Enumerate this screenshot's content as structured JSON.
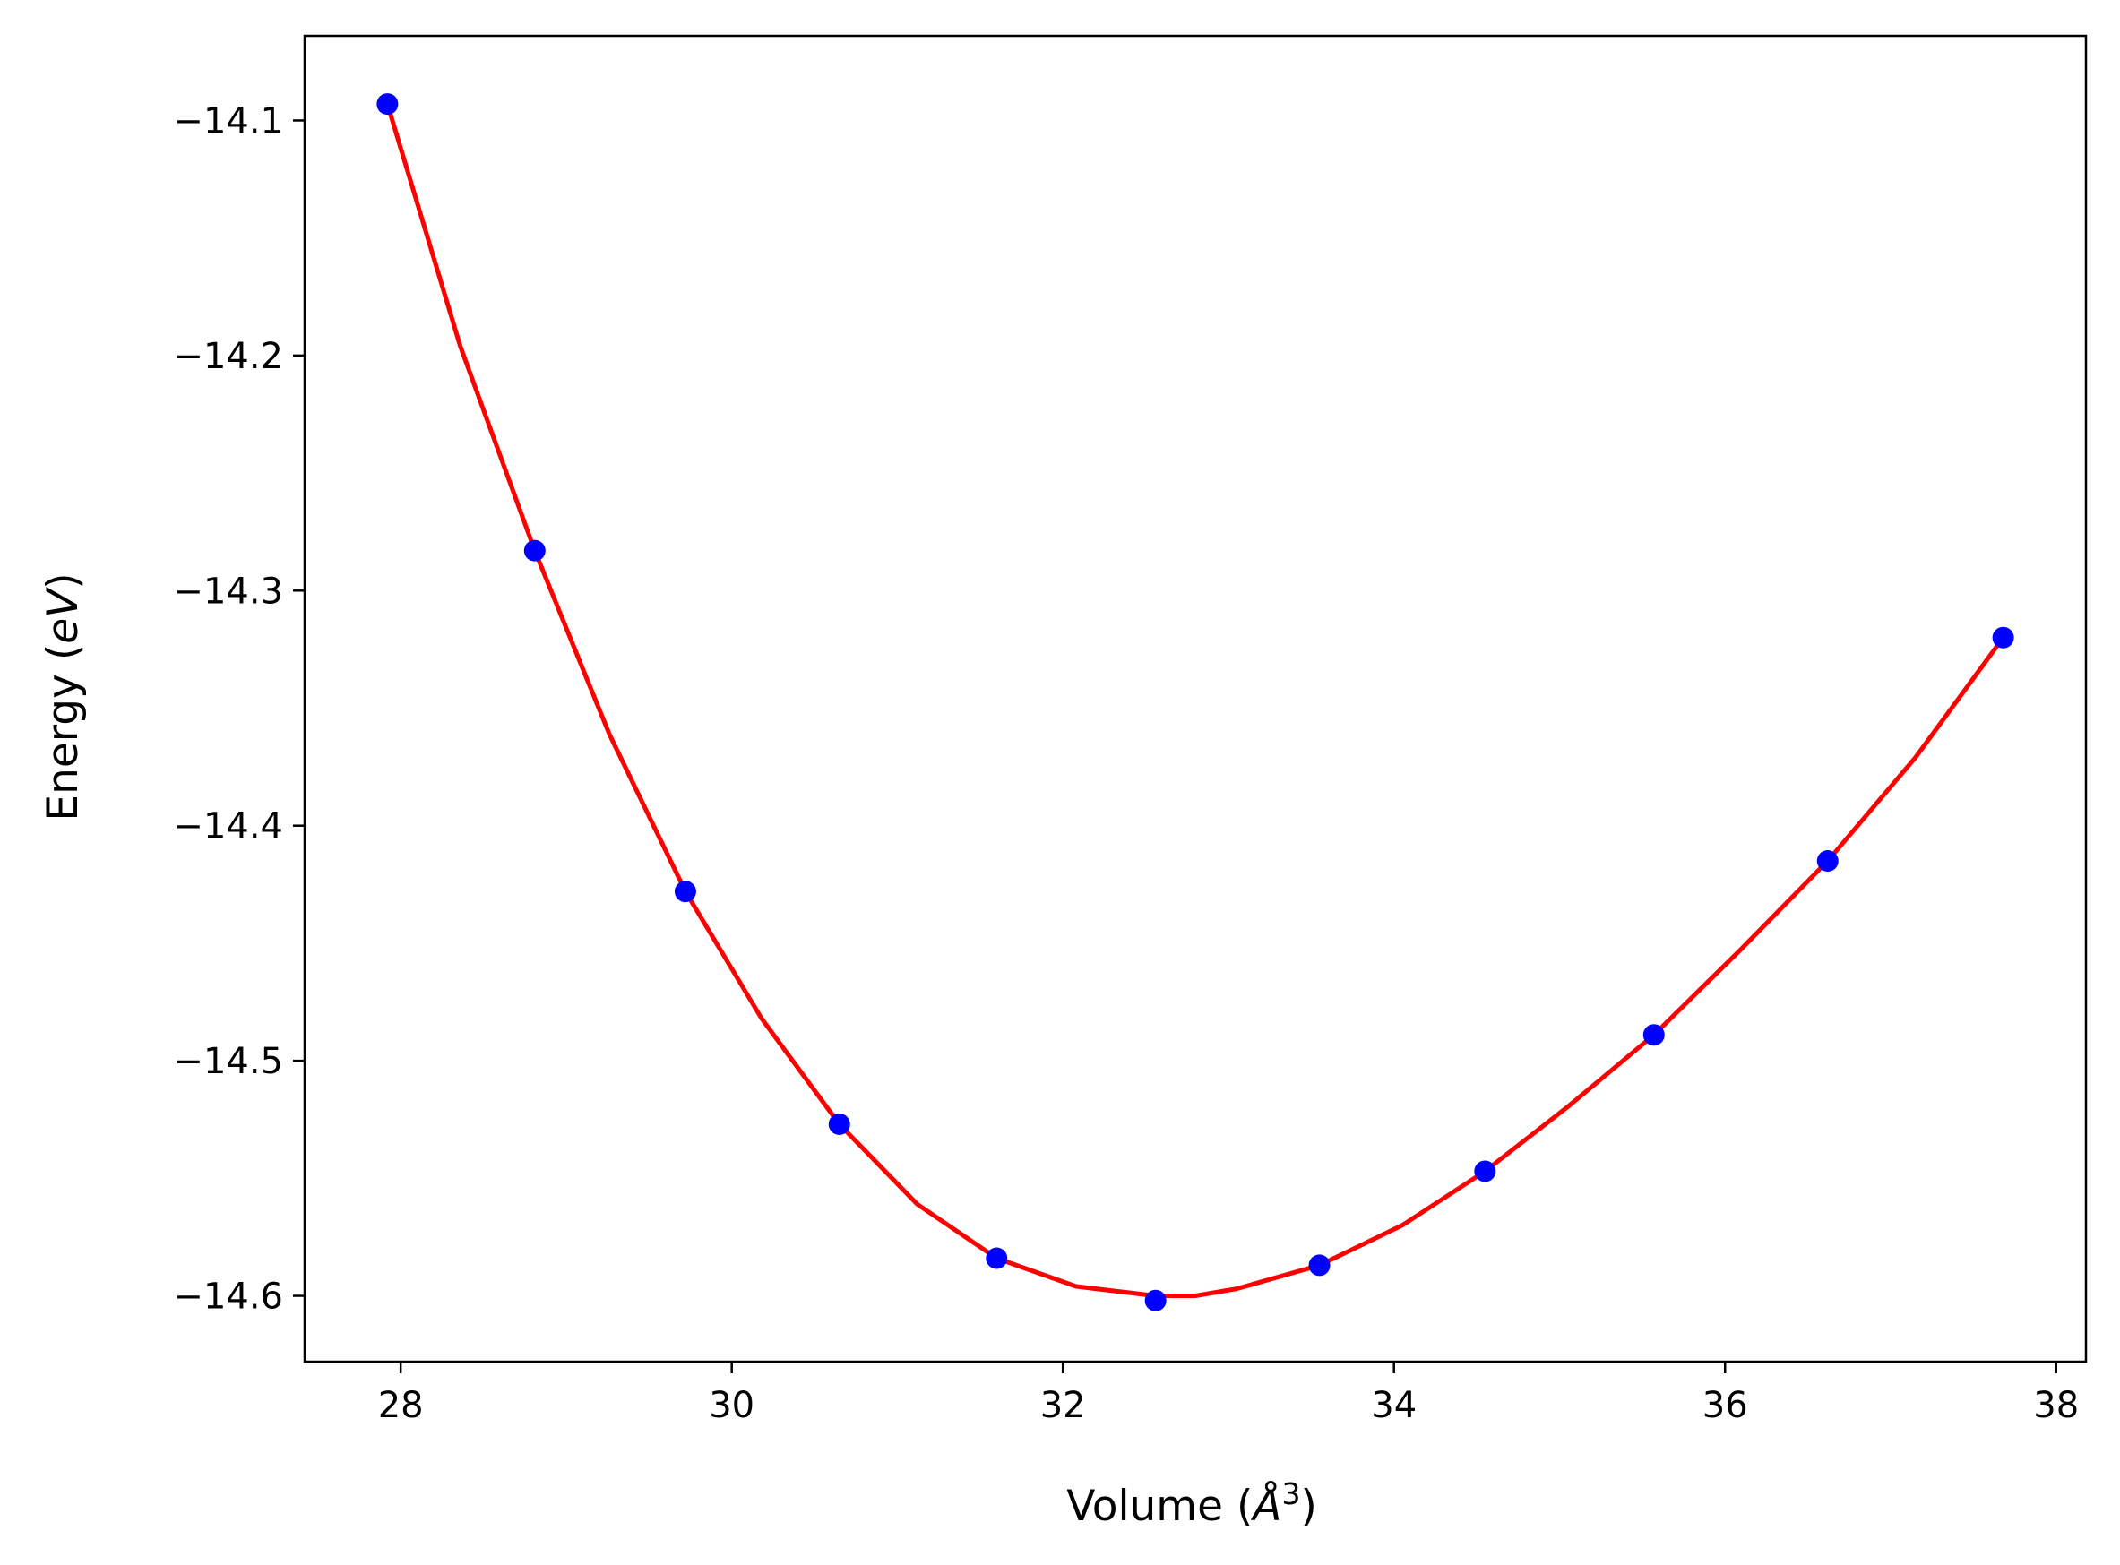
{
  "chart_data": {
    "type": "line",
    "title": "",
    "xlabel": {
      "prefix": "Volume (",
      "symbol": "Å",
      "superscript": "3",
      "suffix": ")"
    },
    "ylabel": {
      "prefix": "Energy (",
      "unit": "eV",
      "suffix": ")"
    },
    "xlim": [
      27.42,
      38.18
    ],
    "ylim": [
      -14.628,
      -14.064
    ],
    "xticks": [
      {
        "value": 28,
        "label": "28"
      },
      {
        "value": 30,
        "label": "30"
      },
      {
        "value": 32,
        "label": "32"
      },
      {
        "value": 34,
        "label": "34"
      },
      {
        "value": 36,
        "label": "36"
      },
      {
        "value": 38,
        "label": "38"
      }
    ],
    "yticks": [
      {
        "value": -14.1,
        "label": "−14.1"
      },
      {
        "value": -14.2,
        "label": "−14.2"
      },
      {
        "value": -14.3,
        "label": "−14.3"
      },
      {
        "value": -14.4,
        "label": "−14.4"
      },
      {
        "value": -14.5,
        "label": "−14.5"
      },
      {
        "value": -14.6,
        "label": "−14.6"
      }
    ],
    "grid": false,
    "legend": "none",
    "series": [
      {
        "kind": "scatter",
        "color": "#0000ff",
        "points": [
          {
            "x": 27.92,
            "y": -14.093
          },
          {
            "x": 28.81,
            "y": -14.283
          },
          {
            "x": 29.72,
            "y": -14.428
          },
          {
            "x": 30.65,
            "y": -14.527
          },
          {
            "x": 31.6,
            "y": -14.584
          },
          {
            "x": 32.56,
            "y": -14.602
          },
          {
            "x": 33.55,
            "y": -14.587
          },
          {
            "x": 34.55,
            "y": -14.547
          },
          {
            "x": 35.57,
            "y": -14.489
          },
          {
            "x": 36.62,
            "y": -14.415
          },
          {
            "x": 37.68,
            "y": -14.32
          }
        ]
      },
      {
        "kind": "line",
        "color": "#ff0000",
        "points": [
          {
            "x": 27.92,
            "y": -14.093
          },
          {
            "x": 28.36,
            "y": -14.196
          },
          {
            "x": 28.81,
            "y": -14.283
          },
          {
            "x": 29.26,
            "y": -14.361
          },
          {
            "x": 29.72,
            "y": -14.428
          },
          {
            "x": 30.18,
            "y": -14.482
          },
          {
            "x": 30.65,
            "y": -14.527
          },
          {
            "x": 31.12,
            "y": -14.561
          },
          {
            "x": 31.6,
            "y": -14.584
          },
          {
            "x": 32.08,
            "y": -14.596
          },
          {
            "x": 32.56,
            "y": -14.6
          },
          {
            "x": 32.8,
            "y": -14.6
          },
          {
            "x": 33.05,
            "y": -14.597
          },
          {
            "x": 33.55,
            "y": -14.587
          },
          {
            "x": 34.05,
            "y": -14.57
          },
          {
            "x": 34.55,
            "y": -14.547
          },
          {
            "x": 35.06,
            "y": -14.519
          },
          {
            "x": 35.57,
            "y": -14.489
          },
          {
            "x": 36.09,
            "y": -14.453
          },
          {
            "x": 36.62,
            "y": -14.415
          },
          {
            "x": 37.15,
            "y": -14.371
          },
          {
            "x": 37.68,
            "y": -14.32
          }
        ]
      }
    ]
  }
}
